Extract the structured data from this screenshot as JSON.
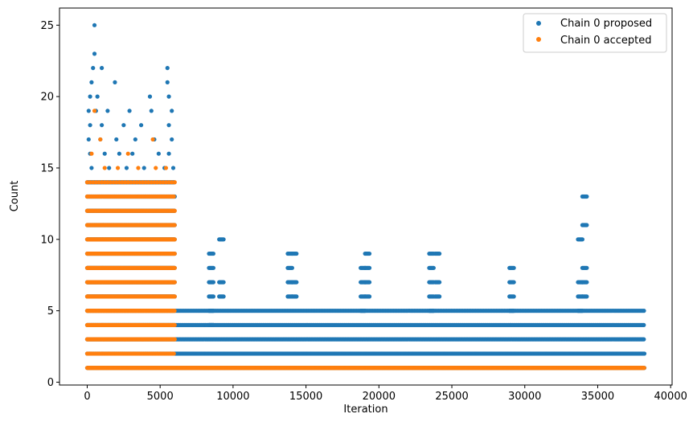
{
  "chart_data": {
    "type": "scatter",
    "title": "",
    "xlabel": "Iteration",
    "ylabel": "Count",
    "xlim": [
      -1900,
      40100
    ],
    "ylim": [
      -0.2,
      26.2
    ],
    "xticks": [
      0,
      5000,
      10000,
      15000,
      20000,
      25000,
      30000,
      35000,
      40000
    ],
    "yticks": [
      0,
      5,
      10,
      15,
      20,
      25
    ],
    "grid": false,
    "legend_position": "top-right",
    "series": [
      {
        "name": "Chain 0 proposed",
        "color": "#1f77b4",
        "bands": [
          {
            "y": 1,
            "x_start": 0,
            "x_end": 38200,
            "step": 50
          },
          {
            "y": 2,
            "x_start": 0,
            "x_end": 38200,
            "step": 50
          },
          {
            "y": 3,
            "x_start": 0,
            "x_end": 38200,
            "step": 80
          },
          {
            "y": 4,
            "x_start": 0,
            "x_end": 38200,
            "step": 90
          },
          {
            "y": 5,
            "x_start": 0,
            "x_end": 38200,
            "step": 110
          },
          {
            "y": 6,
            "x_start": 0,
            "x_end": 6000,
            "step": 40
          },
          {
            "y": 7,
            "x_start": 0,
            "x_end": 6000,
            "step": 40
          },
          {
            "y": 8,
            "x_start": 0,
            "x_end": 6000,
            "step": 40
          },
          {
            "y": 9,
            "x_start": 0,
            "x_end": 6000,
            "step": 40
          },
          {
            "y": 10,
            "x_start": 0,
            "x_end": 6000,
            "step": 40
          },
          {
            "y": 11,
            "x_start": 0,
            "x_end": 6000,
            "step": 40
          },
          {
            "y": 12,
            "x_start": 0,
            "x_end": 6000,
            "step": 45
          },
          {
            "y": 13,
            "x_start": 0,
            "x_end": 6000,
            "step": 50
          },
          {
            "y": 14,
            "x_start": 0,
            "x_end": 6000,
            "step": 70
          }
        ],
        "clusters": [
          {
            "x": 8500,
            "ys": [
              4,
              5,
              6,
              7,
              8,
              9
            ]
          },
          {
            "x": 9200,
            "ys": [
              6,
              7,
              10
            ]
          },
          {
            "x": 13900,
            "ys": [
              6,
              7,
              8,
              9
            ]
          },
          {
            "x": 14200,
            "ys": [
              6,
              7,
              9
            ]
          },
          {
            "x": 18900,
            "ys": [
              5,
              6,
              7,
              8
            ]
          },
          {
            "x": 19200,
            "ys": [
              6,
              7,
              8,
              9
            ]
          },
          {
            "x": 23600,
            "ys": [
              5,
              6,
              7,
              8,
              9
            ]
          },
          {
            "x": 24000,
            "ys": [
              6,
              7,
              9
            ]
          },
          {
            "x": 29100,
            "ys": [
              5,
              6,
              7,
              8
            ]
          },
          {
            "x": 33800,
            "ys": [
              5,
              6,
              7,
              10
            ]
          },
          {
            "x": 34100,
            "ys": [
              6,
              7,
              8,
              11,
              13
            ]
          }
        ],
        "points": [
          [
            500,
            25
          ],
          [
            500,
            23
          ],
          [
            400,
            22
          ],
          [
            1000,
            22
          ],
          [
            5500,
            22
          ],
          [
            300,
            21
          ],
          [
            1900,
            21
          ],
          [
            5500,
            21
          ],
          [
            200,
            20
          ],
          [
            700,
            20
          ],
          [
            4300,
            20
          ],
          [
            5600,
            20
          ],
          [
            100,
            19
          ],
          [
            600,
            19
          ],
          [
            1400,
            19
          ],
          [
            2900,
            19
          ],
          [
            4400,
            19
          ],
          [
            5800,
            19
          ],
          [
            200,
            18
          ],
          [
            1000,
            18
          ],
          [
            2500,
            18
          ],
          [
            3700,
            18
          ],
          [
            5600,
            18
          ],
          [
            100,
            17
          ],
          [
            900,
            17
          ],
          [
            2000,
            17
          ],
          [
            3300,
            17
          ],
          [
            4600,
            17
          ],
          [
            5800,
            17
          ],
          [
            200,
            16
          ],
          [
            1200,
            16
          ],
          [
            2200,
            16
          ],
          [
            3100,
            16
          ],
          [
            4900,
            16
          ],
          [
            5600,
            16
          ],
          [
            300,
            15
          ],
          [
            1500,
            15
          ],
          [
            2700,
            15
          ],
          [
            3900,
            15
          ],
          [
            5300,
            15
          ],
          [
            5900,
            15
          ]
        ]
      },
      {
        "name": "Chain 0 accepted",
        "color": "#ff7f0e",
        "bands": [
          {
            "y": 1,
            "x_start": 0,
            "x_end": 38200,
            "step": 30
          },
          {
            "y": 2,
            "x_start": 0,
            "x_end": 6000,
            "step": 90
          },
          {
            "y": 3,
            "x_start": 0,
            "x_end": 6000,
            "step": 60
          },
          {
            "y": 4,
            "x_start": 0,
            "x_end": 6000,
            "step": 55
          },
          {
            "y": 5,
            "x_start": 0,
            "x_end": 6000,
            "step": 45
          },
          {
            "y": 6,
            "x_start": 0,
            "x_end": 6000,
            "step": 40
          },
          {
            "y": 7,
            "x_start": 0,
            "x_end": 6000,
            "step": 40
          },
          {
            "y": 8,
            "x_start": 0,
            "x_end": 6000,
            "step": 40
          },
          {
            "y": 9,
            "x_start": 0,
            "x_end": 6000,
            "step": 40
          },
          {
            "y": 10,
            "x_start": 0,
            "x_end": 6000,
            "step": 40
          },
          {
            "y": 11,
            "x_start": 0,
            "x_end": 6000,
            "step": 55
          },
          {
            "y": 12,
            "x_start": 0,
            "x_end": 6000,
            "step": 80
          },
          {
            "y": 13,
            "x_start": 0,
            "x_end": 6000,
            "step": 90
          },
          {
            "y": 14,
            "x_start": 0,
            "x_end": 6000,
            "step": 200
          }
        ],
        "clusters": [],
        "points": [
          [
            500,
            19
          ],
          [
            900,
            17
          ],
          [
            1200,
            15
          ],
          [
            2100,
            15
          ],
          [
            3500,
            15
          ],
          [
            4500,
            17
          ],
          [
            4700,
            15
          ],
          [
            5400,
            15
          ],
          [
            300,
            16
          ],
          [
            2800,
            16
          ],
          [
            200,
            2
          ],
          [
            1500,
            2
          ],
          [
            3200,
            2
          ],
          [
            4800,
            2
          ],
          [
            5700,
            2
          ],
          [
            1100,
            3
          ],
          [
            2600,
            3
          ],
          [
            3800,
            3
          ]
        ]
      }
    ]
  }
}
